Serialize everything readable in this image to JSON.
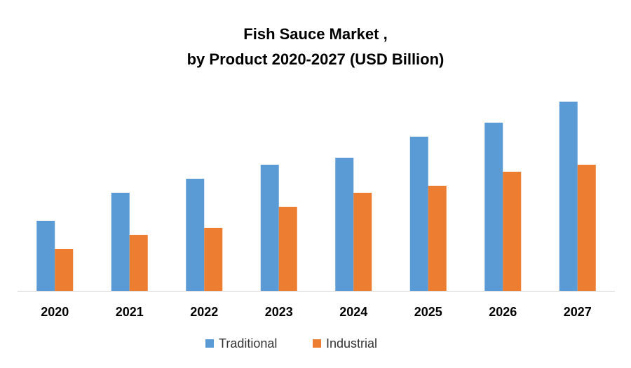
{
  "chart_data": {
    "type": "bar",
    "title": [
      "Fish Sauce Market ,",
      "by Product 2020-2027 (USD Billion)"
    ],
    "categories": [
      "2020",
      "2021",
      "2022",
      "2023",
      "2024",
      "2025",
      "2026",
      "2027"
    ],
    "series": [
      {
        "name": "Traditional",
        "color": "#5b9bd5",
        "values": [
          2.0,
          2.8,
          3.2,
          3.6,
          3.8,
          4.4,
          4.8,
          5.4
        ]
      },
      {
        "name": "Industrial",
        "color": "#ed7d31",
        "values": [
          1.2,
          1.6,
          1.8,
          2.4,
          2.8,
          3.0,
          3.4,
          3.6
        ]
      }
    ],
    "ylim": [
      0,
      6
    ],
    "legend": "bottom"
  }
}
